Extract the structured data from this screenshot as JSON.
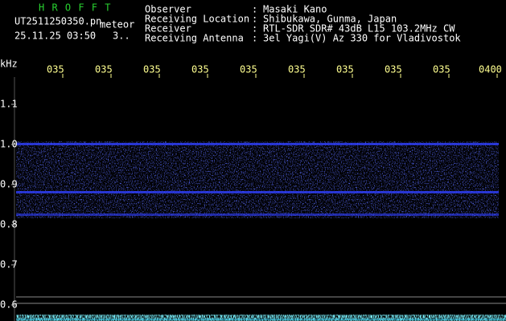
{
  "header": {
    "program": "H R O F F T",
    "file": "UT2511250350.pn",
    "mode": "meteor",
    "datetime": "25.11.25 03:50",
    "extra": "3.."
  },
  "info": {
    "separator": ":",
    "rows": [
      {
        "label": "Observer",
        "value": "Masaki Kano"
      },
      {
        "label": "Receiving Location",
        "value": "Shibukawa, Gunma, Japan"
      },
      {
        "label": "Receiver",
        "value": "RTL-SDR SDR# 43dB L15 103.2MHz CW"
      },
      {
        "label": "Receiving Antenna",
        "value": "3el Yagi(V) Az 330 for Vladivostok"
      }
    ]
  },
  "axis": {
    "unit": "kHz",
    "times": [
      "035",
      "035",
      "035",
      "035",
      "035",
      "035",
      "035",
      "035",
      "035",
      "0400"
    ],
    "frequencies": [
      "1.1",
      "1.0",
      "0.9",
      "0.8",
      "0.7",
      "0.6"
    ]
  }
}
